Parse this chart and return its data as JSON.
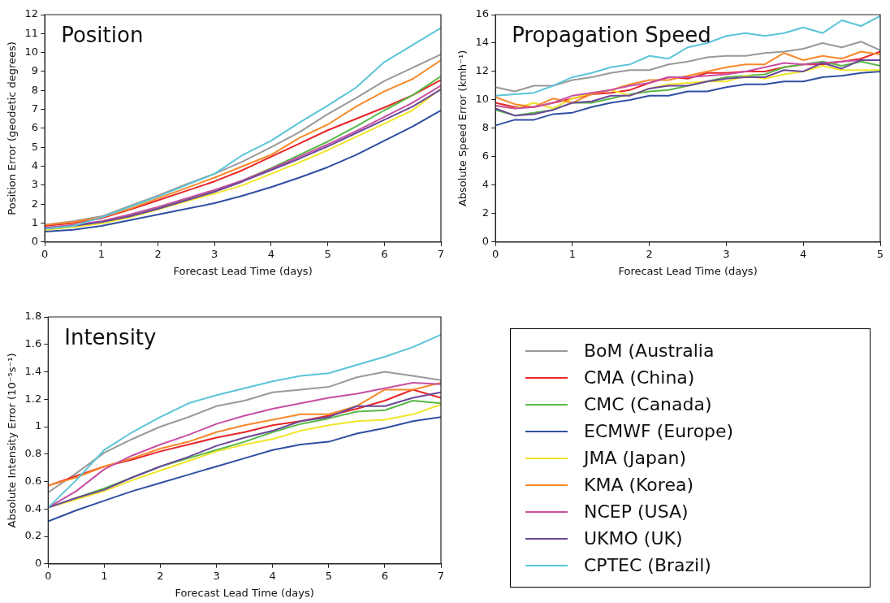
{
  "chart_data": [
    {
      "type": "line",
      "title": "Position",
      "xlabel": "Forecast Lead Time (days)",
      "ylabel": "Position Error (geodetic degrees)",
      "x": [
        0,
        0.5,
        1,
        1.5,
        2,
        2.5,
        3,
        3.5,
        4,
        4.5,
        5,
        5.5,
        6,
        6.5,
        7
      ],
      "xlim": [
        0,
        7
      ],
      "xticks": [
        0,
        1,
        2,
        3,
        4,
        5,
        6,
        7
      ],
      "ylim": [
        0,
        12
      ],
      "yticks": [
        0,
        1,
        2,
        3,
        4,
        5,
        6,
        7,
        8,
        9,
        10,
        11,
        12
      ],
      "grid": false,
      "series": [
        {
          "color": "#999999",
          "values": [
            0.9,
            1.1,
            1.35,
            1.9,
            2.45,
            3.05,
            3.6,
            4.25,
            5.0,
            5.8,
            6.75,
            7.6,
            8.5,
            9.2,
            9.9
          ]
        },
        {
          "color": "#e8262a",
          "values": [
            0.85,
            1.0,
            1.25,
            1.7,
            2.2,
            2.7,
            3.2,
            3.8,
            4.5,
            5.2,
            5.9,
            6.5,
            7.1,
            7.75,
            8.55
          ]
        },
        {
          "color": "#58b947",
          "values": [
            0.7,
            0.85,
            1.05,
            1.4,
            1.8,
            2.25,
            2.7,
            3.25,
            3.9,
            4.6,
            5.3,
            6.1,
            6.95,
            7.75,
            8.75
          ]
        },
        {
          "color": "#2f4fa2",
          "values": [
            0.55,
            0.65,
            0.85,
            1.15,
            1.45,
            1.75,
            2.05,
            2.45,
            2.9,
            3.4,
            3.95,
            4.6,
            5.35,
            6.1,
            6.95
          ]
        },
        {
          "color": "#f0e52a",
          "values": [
            0.63,
            0.78,
            0.98,
            1.3,
            1.72,
            2.15,
            2.55,
            3.0,
            3.6,
            4.2,
            4.85,
            5.55,
            6.25,
            6.95,
            8.1
          ]
        },
        {
          "color": "#f5892a",
          "values": [
            0.9,
            1.05,
            1.3,
            1.75,
            2.3,
            2.85,
            3.4,
            4.0,
            4.6,
            5.5,
            6.2,
            7.15,
            7.95,
            8.6,
            9.6
          ]
        },
        {
          "color": "#c84fa3",
          "values": [
            0.75,
            0.9,
            1.1,
            1.45,
            1.85,
            2.3,
            2.75,
            3.25,
            3.85,
            4.5,
            5.15,
            5.85,
            6.6,
            7.35,
            8.25
          ]
        },
        {
          "color": "#6a4799",
          "values": [
            0.7,
            0.85,
            1.05,
            1.35,
            1.75,
            2.2,
            2.65,
            3.2,
            3.8,
            4.4,
            5.05,
            5.75,
            6.45,
            7.15,
            8.05
          ]
        },
        {
          "color": "#5bc5d8",
          "values": [
            0.7,
            0.85,
            1.3,
            1.85,
            2.4,
            3.0,
            3.6,
            4.6,
            5.35,
            6.3,
            7.2,
            8.15,
            9.5,
            10.4,
            11.3
          ]
        }
      ]
    },
    {
      "type": "line",
      "title": "Propagation Speed",
      "xlabel": "Forecast Lead Time (days)",
      "ylabel": "Absolute Speed Error (kmh⁻¹)",
      "x": [
        0,
        0.25,
        0.5,
        0.75,
        1,
        1.25,
        1.5,
        1.75,
        2,
        2.25,
        2.5,
        2.75,
        3,
        3.25,
        3.5,
        3.75,
        4,
        4.25,
        4.5,
        4.75,
        5
      ],
      "xlim": [
        0,
        5
      ],
      "xticks": [
        0,
        1,
        2,
        3,
        4,
        5
      ],
      "ylim": [
        0,
        16
      ],
      "yticks": [
        0,
        2,
        4,
        6,
        8,
        10,
        12,
        14,
        16
      ],
      "grid": false,
      "series": [
        {
          "color": "#999999",
          "values": [
            10.9,
            10.6,
            11.0,
            11.0,
            11.4,
            11.6,
            11.9,
            12.1,
            12.1,
            12.5,
            12.7,
            13.0,
            13.1,
            13.1,
            13.3,
            13.4,
            13.6,
            14.0,
            13.7,
            14.1,
            13.5
          ]
        },
        {
          "color": "#e8262a",
          "values": [
            9.8,
            9.5,
            9.5,
            9.8,
            10.1,
            10.4,
            10.5,
            10.7,
            11.2,
            11.6,
            11.5,
            11.9,
            11.9,
            12.0,
            12.0,
            12.3,
            12.5,
            12.5,
            12.7,
            12.9,
            13.4
          ]
        },
        {
          "color": "#58b947",
          "values": [
            9.3,
            8.9,
            9.1,
            9.3,
            9.8,
            9.8,
            10.1,
            10.4,
            10.6,
            10.7,
            11.0,
            11.3,
            11.6,
            11.7,
            11.8,
            12.3,
            12.5,
            12.7,
            12.4,
            12.7,
            12.4
          ]
        },
        {
          "color": "#2f4fa2",
          "values": [
            8.2,
            8.6,
            8.6,
            9.0,
            9.1,
            9.5,
            9.8,
            10.0,
            10.3,
            10.3,
            10.6,
            10.6,
            10.9,
            11.1,
            11.1,
            11.3,
            11.3,
            11.6,
            11.7,
            11.9,
            12.0
          ]
        },
        {
          "color": "#f0e52a",
          "values": [
            9.6,
            9.4,
            9.8,
            9.4,
            10.1,
            10.5,
            10.7,
            10.3,
            10.8,
            11.1,
            11.2,
            11.3,
            11.3,
            11.7,
            11.5,
            11.8,
            12.0,
            12.4,
            12.1,
            12.1,
            12.1
          ]
        },
        {
          "color": "#f5892a",
          "values": [
            10.2,
            9.7,
            9.5,
            10.1,
            9.8,
            10.4,
            10.7,
            11.1,
            11.4,
            11.4,
            11.7,
            12.0,
            12.3,
            12.5,
            12.5,
            13.3,
            12.8,
            13.1,
            12.9,
            13.4,
            13.2
          ]
        },
        {
          "color": "#c84fa3",
          "values": [
            9.6,
            9.4,
            9.5,
            9.8,
            10.3,
            10.5,
            10.7,
            11.0,
            11.2,
            11.6,
            11.6,
            11.7,
            11.8,
            12.0,
            12.3,
            12.6,
            12.5,
            12.6,
            12.7,
            12.8,
            12.8
          ]
        },
        {
          "color": "#6a4799",
          "values": [
            9.4,
            8.9,
            9.0,
            9.3,
            9.8,
            9.9,
            10.3,
            10.3,
            10.8,
            11.0,
            11.0,
            11.3,
            11.5,
            11.6,
            11.6,
            12.1,
            12.0,
            12.6,
            12.2,
            12.8,
            12.8
          ]
        },
        {
          "color": "#5bc5d8",
          "values": [
            10.3,
            10.4,
            10.5,
            11.0,
            11.6,
            11.9,
            12.3,
            12.5,
            13.1,
            12.9,
            13.7,
            14.0,
            14.5,
            14.7,
            14.5,
            14.7,
            15.1,
            14.7,
            15.6,
            15.2,
            15.9
          ]
        }
      ]
    },
    {
      "type": "line",
      "title": "Intensity",
      "xlabel": "Forecast Lead Time (days)",
      "ylabel": "Absolute Intensity Error (10⁻⁵s⁻¹)",
      "x": [
        0,
        0.5,
        1,
        1.5,
        2,
        2.5,
        3,
        3.5,
        4,
        4.5,
        5,
        5.5,
        6,
        6.5,
        7
      ],
      "xlim": [
        0,
        7
      ],
      "xticks": [
        0,
        1,
        2,
        3,
        4,
        5,
        6,
        7
      ],
      "ylim": [
        0,
        1.8
      ],
      "yticks": [
        0,
        0.2,
        0.4,
        0.6,
        0.8,
        1,
        1.2,
        1.4,
        1.6,
        1.8
      ],
      "grid": false,
      "legend": "right",
      "series": [
        {
          "name": "BoM (Australia",
          "color": "#999999",
          "values": [
            0.52,
            0.66,
            0.81,
            0.91,
            1.0,
            1.07,
            1.15,
            1.19,
            1.25,
            1.27,
            1.29,
            1.36,
            1.4,
            1.37,
            1.34
          ]
        },
        {
          "name": "CMA (China)",
          "color": "#e8262a",
          "values": [
            0.57,
            0.64,
            0.71,
            0.76,
            0.82,
            0.87,
            0.92,
            0.96,
            1.01,
            1.04,
            1.08,
            1.13,
            1.19,
            1.27,
            1.21
          ]
        },
        {
          "name": "CMC (Canada)",
          "color": "#58b947",
          "values": [
            0.41,
            0.48,
            0.55,
            0.63,
            0.71,
            0.77,
            0.83,
            0.89,
            0.96,
            1.02,
            1.06,
            1.11,
            1.12,
            1.19,
            1.17
          ]
        },
        {
          "name": "ECMWF (Europe)",
          "color": "#2f4fa2",
          "values": [
            0.31,
            0.39,
            0.46,
            0.53,
            0.59,
            0.65,
            0.71,
            0.77,
            0.83,
            0.87,
            0.89,
            0.95,
            0.99,
            1.04,
            1.07
          ]
        },
        {
          "name": "JMA (Japan)",
          "color": "#f0e52a",
          "values": [
            0.41,
            0.47,
            0.53,
            0.61,
            0.68,
            0.75,
            0.82,
            0.87,
            0.91,
            0.97,
            1.01,
            1.04,
            1.05,
            1.09,
            1.16
          ]
        },
        {
          "name": "KMA (Korea)",
          "color": "#f5892a",
          "values": [
            0.57,
            0.63,
            0.71,
            0.77,
            0.84,
            0.89,
            0.96,
            1.01,
            1.05,
            1.09,
            1.09,
            1.15,
            1.27,
            1.27,
            1.32
          ]
        },
        {
          "name": "NCEP (USA)",
          "color": "#c84fa3",
          "values": [
            0.41,
            0.53,
            0.69,
            0.79,
            0.87,
            0.94,
            1.02,
            1.08,
            1.13,
            1.17,
            1.21,
            1.24,
            1.28,
            1.32,
            1.31
          ]
        },
        {
          "name": "UKMO (UK)",
          "color": "#6a4799",
          "values": [
            0.41,
            0.48,
            0.54,
            0.63,
            0.71,
            0.78,
            0.86,
            0.92,
            0.97,
            1.04,
            1.07,
            1.15,
            1.15,
            1.21,
            1.25
          ]
        },
        {
          "name": "CPTEC (Brazil)",
          "color": "#5bc5d8",
          "values": [
            0.41,
            0.61,
            0.83,
            0.96,
            1.07,
            1.17,
            1.23,
            1.28,
            1.33,
            1.37,
            1.39,
            1.45,
            1.51,
            1.58,
            1.67
          ]
        }
      ]
    }
  ]
}
